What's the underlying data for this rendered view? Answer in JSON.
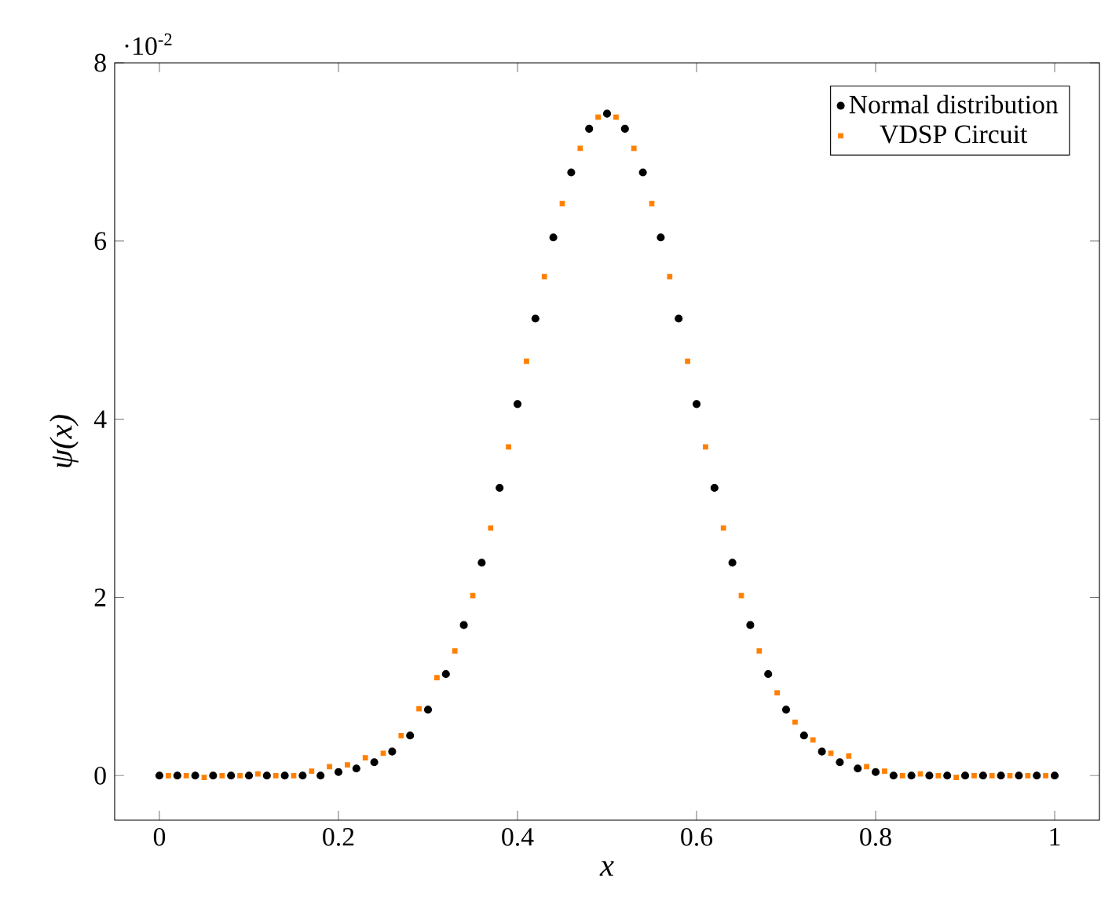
{
  "chart_data": {
    "type": "scatter",
    "xlabel": "x",
    "ylabel": "ψ(x)",
    "xlim": [
      -0.05,
      1.05
    ],
    "ylim": [
      -0.5,
      8
    ],
    "xticks": [
      0,
      0.2,
      0.4,
      0.6,
      0.8,
      1
    ],
    "yticks": [
      0,
      2,
      4,
      6,
      8
    ],
    "annotations": [
      "·10$^{-2}$"
    ],
    "legend": "top right",
    "series": [
      {
        "name": "Normal distribution",
        "color": "#000000",
        "marker": "circle",
        "x": [
          0,
          0.02,
          0.04,
          0.06,
          0.08,
          0.1,
          0.12,
          0.14,
          0.16,
          0.18,
          0.2,
          0.22,
          0.24,
          0.26,
          0.28,
          0.3,
          0.32,
          0.34,
          0.36,
          0.38,
          0.4,
          0.42,
          0.44,
          0.46,
          0.48,
          0.5,
          0.52,
          0.54,
          0.56,
          0.58,
          0.6,
          0.62,
          0.64,
          0.66,
          0.68,
          0.7,
          0.72,
          0.74,
          0.76,
          0.78,
          0.8,
          0.82,
          0.84,
          0.86,
          0.88,
          0.9,
          0.92,
          0.94,
          0.96,
          0.98,
          1
        ],
        "values": [
          0,
          0,
          0,
          0,
          0,
          0,
          0,
          0,
          0,
          0,
          0.04,
          0.08,
          0.15,
          0.27,
          0.45,
          0.74,
          1.14,
          1.69,
          2.39,
          3.23,
          4.17,
          5.13,
          6.04,
          6.77,
          7.26,
          7.43,
          7.26,
          6.77,
          6.04,
          5.13,
          4.17,
          3.23,
          2.39,
          1.69,
          1.14,
          0.74,
          0.45,
          0.27,
          0.15,
          0.08,
          0.04,
          0,
          0,
          0,
          0,
          0,
          0,
          0,
          0,
          0,
          0
        ]
      },
      {
        "name": "VDSP Circuit",
        "color": "#ff8000",
        "marker": "square",
        "x": [
          0.01,
          0.03,
          0.05,
          0.07,
          0.09,
          0.11,
          0.13,
          0.15,
          0.17,
          0.19,
          0.21,
          0.23,
          0.25,
          0.27,
          0.29,
          0.31,
          0.33,
          0.35,
          0.37,
          0.39,
          0.41,
          0.43,
          0.45,
          0.47,
          0.49,
          0.51,
          0.53,
          0.55,
          0.57,
          0.59,
          0.61,
          0.63,
          0.65,
          0.67,
          0.69,
          0.71,
          0.73,
          0.75,
          0.77,
          0.79,
          0.81,
          0.83,
          0.85,
          0.87,
          0.89,
          0.91,
          0.93,
          0.95,
          0.97,
          0.99
        ],
        "values": [
          0,
          0,
          -0.02,
          0,
          0,
          0.02,
          0,
          0,
          0.05,
          0.1,
          0.12,
          0.2,
          0.25,
          0.45,
          0.75,
          1.1,
          1.4,
          2.02,
          2.78,
          3.69,
          4.65,
          5.6,
          6.42,
          7.04,
          7.39,
          7.39,
          7.04,
          6.42,
          5.6,
          4.65,
          3.69,
          2.78,
          2.02,
          1.4,
          0.93,
          0.6,
          0.4,
          0.25,
          0.22,
          0.1,
          0.05,
          0,
          0.02,
          0,
          -0.02,
          0,
          0,
          0,
          0,
          0
        ]
      }
    ]
  }
}
